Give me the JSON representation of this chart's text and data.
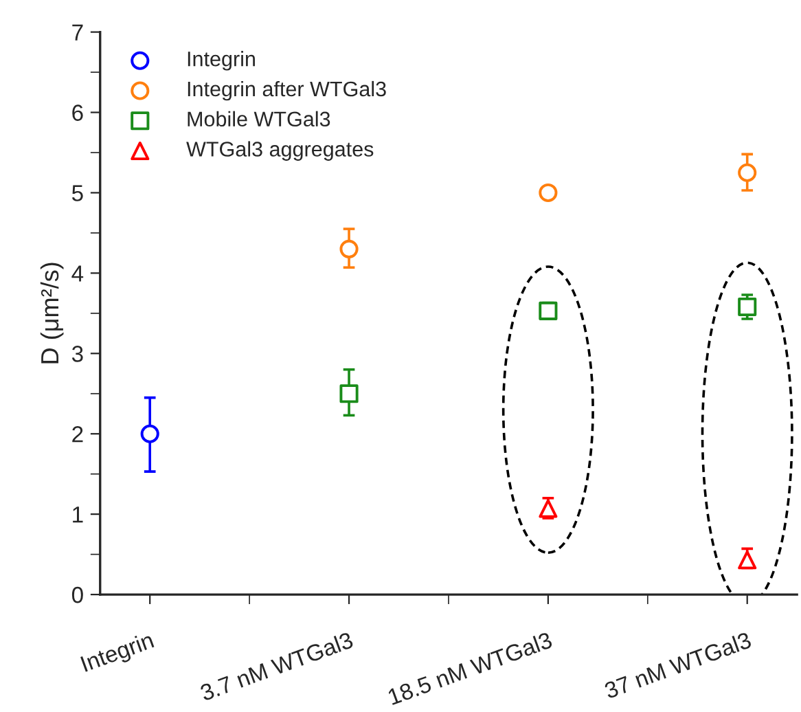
{
  "chart_data": {
    "type": "scatter",
    "categories": [
      "Integrin",
      "3.7 nM WTGal3",
      "18.5 nM WTGal3",
      "37 nM WTGal3"
    ],
    "ylabel": "D (μm²/s)",
    "ylim": [
      0,
      7
    ],
    "yticks": [
      0,
      1,
      2,
      3,
      4,
      5,
      6,
      7
    ],
    "legend": "top left",
    "grid": false,
    "series": [
      {
        "name": "Integrin",
        "color": "#0000ff",
        "marker": "circle",
        "values": [
          2.0,
          null,
          null,
          null
        ],
        "errors": [
          [
            1.53,
            2.45
          ],
          null,
          null,
          null
        ]
      },
      {
        "name": "Integrin after WTGal3",
        "color": "#ff7f0e",
        "marker": "circle",
        "values": [
          null,
          4.3,
          5.0,
          5.25
        ],
        "errors": [
          null,
          [
            4.07,
            4.55
          ],
          [
            4.95,
            5.05
          ],
          [
            5.03,
            5.48
          ]
        ]
      },
      {
        "name": "Mobile WTGal3",
        "color": "#1a8c1a",
        "marker": "square",
        "values": [
          null,
          2.5,
          3.53,
          3.58
        ],
        "errors": [
          null,
          [
            2.23,
            2.8
          ],
          [
            3.45,
            3.63
          ],
          [
            3.43,
            3.73
          ]
        ]
      },
      {
        "name": "WTGal3 aggregates",
        "color": "#ff0000",
        "marker": "triangle",
        "values": [
          null,
          null,
          1.07,
          0.43
        ],
        "errors": [
          null,
          null,
          [
            0.95,
            1.2
          ],
          [
            0.33,
            0.57
          ]
        ]
      }
    ]
  }
}
